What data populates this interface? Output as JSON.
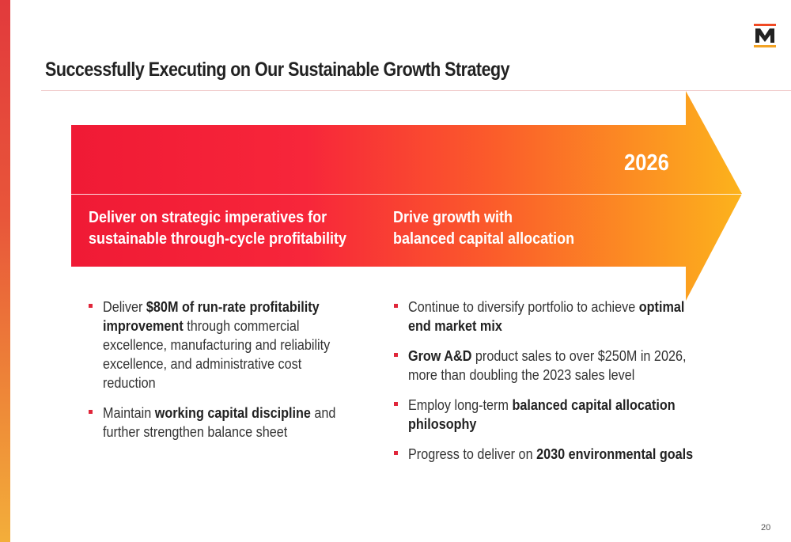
{
  "logo": {
    "alt": "M"
  },
  "colors": {
    "accent_red": "#e0263a",
    "arrow_start": "#f01a35",
    "arrow_mid": "#fb5a2b",
    "arrow_end": "#fcb31c"
  },
  "slide": {
    "title": "Successfully Executing on Our Sustainable Growth Strategy",
    "year": "2026",
    "page_number": "20"
  },
  "columns": {
    "left": {
      "heading_line1": "Deliver on strategic imperatives for",
      "heading_line2": "sustainable through-cycle profitability"
    },
    "right": {
      "heading_line1": "Drive growth with",
      "heading_line2": "balanced capital allocation"
    }
  },
  "bullets_left": [
    {
      "pre": "Deliver ",
      "bold": "$80M of run-rate profitability improvement",
      "post": " through commercial excellence, manufacturing and reliability excellence, and administrative cost reduction"
    },
    {
      "pre": "Maintain ",
      "bold": "working capital discipline",
      "post": " and further strengthen balance sheet"
    }
  ],
  "bullets_right": [
    {
      "pre": "Continue to diversify portfolio to achieve ",
      "bold": "optimal end market mix",
      "post": ""
    },
    {
      "pre": "",
      "bold": "Grow A&D",
      "post": " product sales to over $250M in 2026, more than doubling the 2023 sales level"
    },
    {
      "pre": "Employ long-term ",
      "bold": "balanced capital allocation philosophy",
      "post": ""
    },
    {
      "pre": "Progress to deliver on ",
      "bold": "2030 environmental goals",
      "post": ""
    }
  ]
}
